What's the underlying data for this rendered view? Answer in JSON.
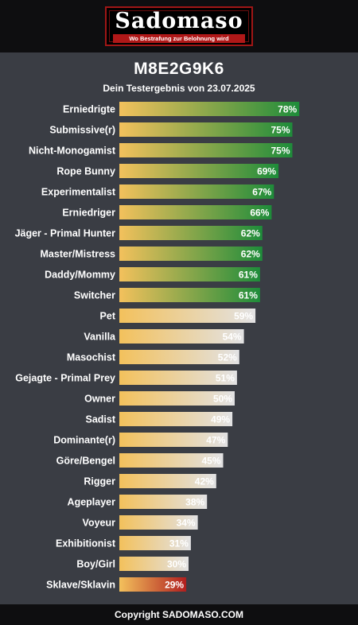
{
  "header": {
    "logo_name": "Sadomaso",
    "logo_tagline": "Wo Bestrafung zur Belohnung wird",
    "test_code": "M8E2G9K6",
    "subtitle": "Dein Testergebnis von 23.07.2025"
  },
  "footer": {
    "copyright": "Copyright SADOMASO.COM"
  },
  "colors": {
    "bar_start": "#f3c15c",
    "high_end": "#1e8c3a",
    "mid_end": "#e2e2e4",
    "low_end": "#b01e1e",
    "background": "#3a3d44"
  },
  "chart_data": {
    "type": "bar",
    "orientation": "horizontal",
    "xlim": [
      0,
      100
    ],
    "unit": "%",
    "categories": [
      "Erniedrigte",
      "Submissive(r)",
      "Nicht-Monogamist",
      "Rope Bunny",
      "Experimentalist",
      "Erniedriger",
      "Jäger - Primal Hunter",
      "Master/Mistress",
      "Daddy/Mommy",
      "Switcher",
      "Pet",
      "Vanilla",
      "Masochist",
      "Gejagte - Primal Prey",
      "Owner",
      "Sadist",
      "Dominante(r)",
      "Göre/Bengel",
      "Rigger",
      "Ageplayer",
      "Voyeur",
      "Exhibitionist",
      "Boy/Girl",
      "Sklave/Sklavin"
    ],
    "values": [
      78,
      75,
      75,
      69,
      67,
      66,
      62,
      62,
      61,
      61,
      59,
      54,
      52,
      51,
      50,
      49,
      47,
      45,
      42,
      38,
      34,
      31,
      30,
      29
    ],
    "labels": [
      "78%",
      "75%",
      "75%",
      "69%",
      "67%",
      "66%",
      "62%",
      "62%",
      "61%",
      "61%",
      "59%",
      "54%",
      "52%",
      "51%",
      "50%",
      "49%",
      "47%",
      "45%",
      "42%",
      "38%",
      "34%",
      "31%",
      "30%",
      "29%"
    ]
  }
}
